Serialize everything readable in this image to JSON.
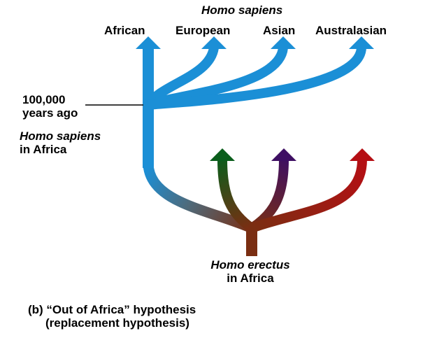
{
  "header": {
    "species": "Homo sapiens"
  },
  "branches": {
    "african": "African",
    "european": "European",
    "asian": "Asian",
    "australasian": "Australasian"
  },
  "time_marker": {
    "line1": "100,000",
    "line2": "years ago"
  },
  "sapiens_origin": {
    "line1": "Homo sapiens",
    "line2": "in Africa"
  },
  "erectus_origin": {
    "line1": "Homo erectus",
    "line2": "in Africa"
  },
  "caption": {
    "line1": "(b) “Out of Africa” hypothesis",
    "line2": "(replacement hypothesis)"
  },
  "colors": {
    "sapiens": "#1b8fd6",
    "erectus_trunk": "#7a2e12",
    "extinct_green": "#0b5e1c",
    "extinct_purple": "#3e0f63",
    "extinct_red": "#b50f14"
  }
}
